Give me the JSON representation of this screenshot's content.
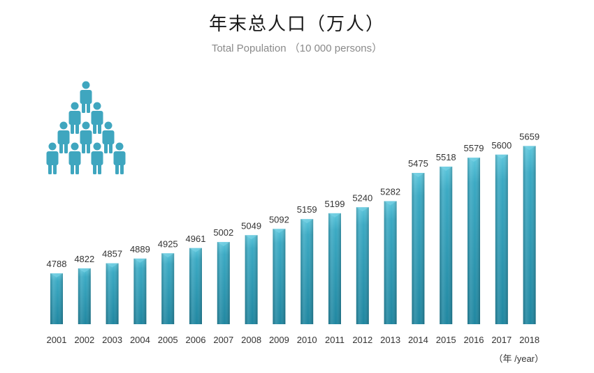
{
  "title": "年末总人口（万人）",
  "subtitle": "Total Population （10 000 persons）",
  "x_unit_label": "（年 /year）",
  "colors": {
    "bar_top": "#52bfd6",
    "bar_mid": "#2f9fba",
    "bar_bottom": "#1d7f99",
    "icon": "#3fa6bf",
    "text": "#333333"
  },
  "icon": "people-pyramid-icon",
  "chart_data": {
    "type": "bar",
    "categories": [
      "2001",
      "2002",
      "2003",
      "2004",
      "2005",
      "2006",
      "2007",
      "2008",
      "2009",
      "2010",
      "2011",
      "2012",
      "2013",
      "2014",
      "2015",
      "2016",
      "2017",
      "2018"
    ],
    "values": [
      4788,
      4822,
      4857,
      4889,
      4925,
      4961,
      5002,
      5049,
      5092,
      5159,
      5199,
      5240,
      5282,
      5475,
      5518,
      5579,
      5600,
      5659
    ],
    "title": "年末总人口（万人）",
    "subtitle": "Total Population （10 000 persons）",
    "xlabel": "（年 /year）",
    "ylabel": "",
    "ylim": [
      4440,
      5680
    ],
    "grid": false,
    "legend": "none"
  }
}
